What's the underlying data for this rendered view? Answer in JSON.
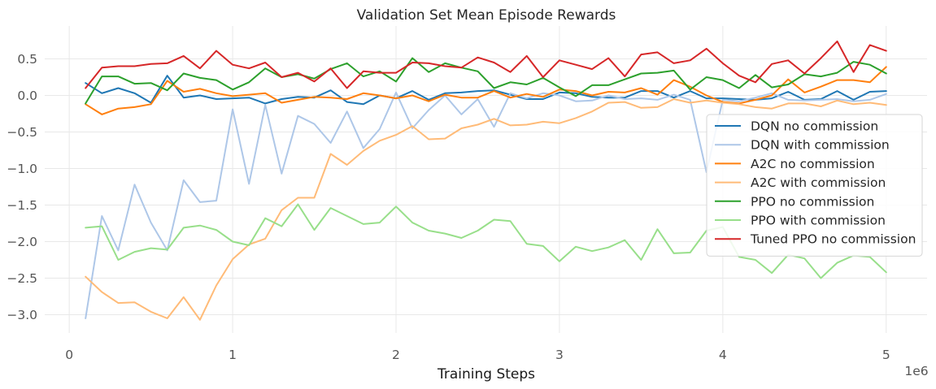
{
  "chart_data": {
    "type": "line",
    "title": "Validation Set Mean Episode Rewards",
    "xlabel": "Training Steps",
    "ylabel": "",
    "x_offset_label": "1e6",
    "xlim": [
      -0.15,
      5.25
    ],
    "ylim": [
      -3.25,
      0.95
    ],
    "x_ticks": [
      0,
      1,
      2,
      3,
      4,
      5
    ],
    "x_tick_labels": [
      "0",
      "1",
      "2",
      "3",
      "4",
      "5"
    ],
    "y_ticks": [
      0.5,
      0.0,
      -0.5,
      -1.0,
      -1.5,
      -2.0,
      -2.5,
      -3.0
    ],
    "y_tick_labels": [
      "0.5",
      "0.0",
      "−0.5",
      "−1.0",
      "−1.5",
      "−2.0",
      "−2.5",
      "−3.0"
    ],
    "grid": true,
    "legend_position": "center-right",
    "x": [
      0.1,
      0.2,
      0.3,
      0.4,
      0.5,
      0.6,
      0.7,
      0.8,
      0.9,
      1.0,
      1.1,
      1.2,
      1.3,
      1.4,
      1.5,
      1.6,
      1.7,
      1.8,
      1.9,
      2.0,
      2.1,
      2.2,
      2.3,
      2.4,
      2.5,
      2.6,
      2.7,
      2.8,
      2.9,
      3.0,
      3.1,
      3.2,
      3.3,
      3.4,
      3.5,
      3.6,
      3.7,
      3.8,
      3.9,
      4.0,
      4.1,
      4.2,
      4.3,
      4.4,
      4.5,
      4.6,
      4.7,
      4.8,
      4.9,
      5.0
    ],
    "series": [
      {
        "name": "DQN no commission",
        "color": "#1f77b4",
        "values": [
          0.17,
          0.03,
          0.1,
          0.03,
          -0.1,
          0.27,
          -0.03,
          0.0,
          -0.05,
          -0.04,
          -0.03,
          -0.11,
          -0.05,
          -0.02,
          -0.03,
          0.07,
          -0.09,
          -0.12,
          0.0,
          -0.04,
          0.06,
          -0.06,
          0.03,
          0.04,
          0.06,
          0.07,
          0.01,
          -0.05,
          -0.05,
          0.04,
          0.03,
          -0.02,
          -0.03,
          -0.03,
          0.06,
          0.06,
          -0.03,
          0.06,
          -0.04,
          -0.04,
          -0.05,
          -0.06,
          -0.04,
          0.05,
          -0.06,
          -0.05,
          0.06,
          -0.06,
          0.05,
          0.06
        ]
      },
      {
        "name": "DQN with commission",
        "color": "#aec7e8",
        "values": [
          -3.05,
          -1.65,
          -2.12,
          -1.22,
          -1.74,
          -2.12,
          -1.16,
          -1.46,
          -1.44,
          -0.19,
          -1.21,
          -0.13,
          -1.07,
          -0.28,
          -0.39,
          -0.65,
          -0.22,
          -0.72,
          -0.46,
          0.04,
          -0.45,
          -0.2,
          0.0,
          -0.26,
          -0.05,
          -0.43,
          0.03,
          -0.04,
          0.03,
          0.0,
          -0.08,
          -0.07,
          0.0,
          -0.05,
          -0.04,
          -0.06,
          0.01,
          -0.06,
          -1.05,
          -0.06,
          -0.08,
          -0.03,
          0.03,
          -0.06,
          -0.07,
          -0.06,
          -0.05,
          -0.08,
          -0.06,
          0.02
        ]
      },
      {
        "name": "A2C no commission",
        "color": "#ff7f0e",
        "values": [
          -0.12,
          -0.26,
          -0.18,
          -0.16,
          -0.12,
          0.2,
          0.05,
          0.09,
          0.03,
          -0.01,
          0.01,
          0.03,
          -0.1,
          -0.06,
          -0.02,
          -0.03,
          -0.05,
          0.03,
          0.0,
          -0.04,
          0.0,
          -0.08,
          0.01,
          -0.03,
          -0.03,
          0.06,
          -0.03,
          0.02,
          -0.02,
          0.08,
          0.06,
          0.0,
          0.05,
          0.04,
          0.1,
          0.01,
          0.21,
          0.12,
          0.0,
          -0.09,
          -0.11,
          -0.06,
          0.0,
          0.22,
          0.04,
          0.12,
          0.21,
          0.21,
          0.18,
          0.39
        ]
      },
      {
        "name": "A2C with commission",
        "color": "#ffbb78",
        "values": [
          -2.48,
          -2.69,
          -2.84,
          -2.83,
          -2.96,
          -3.05,
          -2.76,
          -3.07,
          -2.6,
          -2.24,
          -2.04,
          -1.96,
          -1.57,
          -1.4,
          -1.4,
          -0.8,
          -0.95,
          -0.76,
          -0.62,
          -0.54,
          -0.42,
          -0.6,
          -0.59,
          -0.45,
          -0.4,
          -0.32,
          -0.41,
          -0.4,
          -0.36,
          -0.38,
          -0.31,
          -0.22,
          -0.1,
          -0.09,
          -0.17,
          -0.16,
          -0.05,
          -0.1,
          -0.07,
          -0.1,
          -0.12,
          -0.16,
          -0.18,
          -0.11,
          -0.11,
          -0.15,
          -0.07,
          -0.12,
          -0.1,
          -0.13
        ]
      },
      {
        "name": "PPO no commission",
        "color": "#2ca02c",
        "values": [
          -0.11,
          0.26,
          0.26,
          0.16,
          0.17,
          0.07,
          0.3,
          0.24,
          0.21,
          0.08,
          0.18,
          0.37,
          0.25,
          0.29,
          0.23,
          0.36,
          0.44,
          0.26,
          0.33,
          0.19,
          0.51,
          0.32,
          0.44,
          0.38,
          0.33,
          0.1,
          0.18,
          0.15,
          0.24,
          0.11,
          -0.01,
          0.14,
          0.14,
          0.22,
          0.3,
          0.31,
          0.34,
          0.08,
          0.25,
          0.21,
          0.1,
          0.28,
          0.11,
          0.15,
          0.29,
          0.26,
          0.31,
          0.46,
          0.42,
          0.3
        ]
      },
      {
        "name": "PPO with commission",
        "color": "#98df8a",
        "values": [
          -1.81,
          -1.79,
          -2.25,
          -2.14,
          -2.09,
          -2.11,
          -1.81,
          -1.78,
          -1.84,
          -2.0,
          -2.05,
          -1.68,
          -1.79,
          -1.49,
          -1.84,
          -1.54,
          -1.65,
          -1.76,
          -1.74,
          -1.52,
          -1.74,
          -1.85,
          -1.89,
          -1.95,
          -1.85,
          -1.7,
          -1.72,
          -2.03,
          -2.06,
          -2.27,
          -2.07,
          -2.13,
          -2.08,
          -1.98,
          -2.25,
          -1.83,
          -2.16,
          -2.15,
          -1.85,
          -1.8,
          -2.21,
          -2.25,
          -2.43,
          -2.18,
          -2.23,
          -2.5,
          -2.29,
          -2.19,
          -2.21,
          -2.42
        ]
      },
      {
        "name": "Tuned PPO no commission",
        "color": "#d62728",
        "values": [
          0.1,
          0.38,
          0.4,
          0.4,
          0.43,
          0.44,
          0.54,
          0.37,
          0.61,
          0.42,
          0.37,
          0.45,
          0.25,
          0.31,
          0.19,
          0.37,
          0.1,
          0.33,
          0.31,
          0.31,
          0.45,
          0.44,
          0.4,
          0.38,
          0.52,
          0.45,
          0.32,
          0.54,
          0.25,
          0.48,
          0.42,
          0.36,
          0.51,
          0.26,
          0.56,
          0.59,
          0.44,
          0.48,
          0.64,
          0.44,
          0.27,
          0.18,
          0.43,
          0.48,
          0.3,
          0.51,
          0.74,
          0.32,
          0.69,
          0.61
        ]
      }
    ]
  }
}
